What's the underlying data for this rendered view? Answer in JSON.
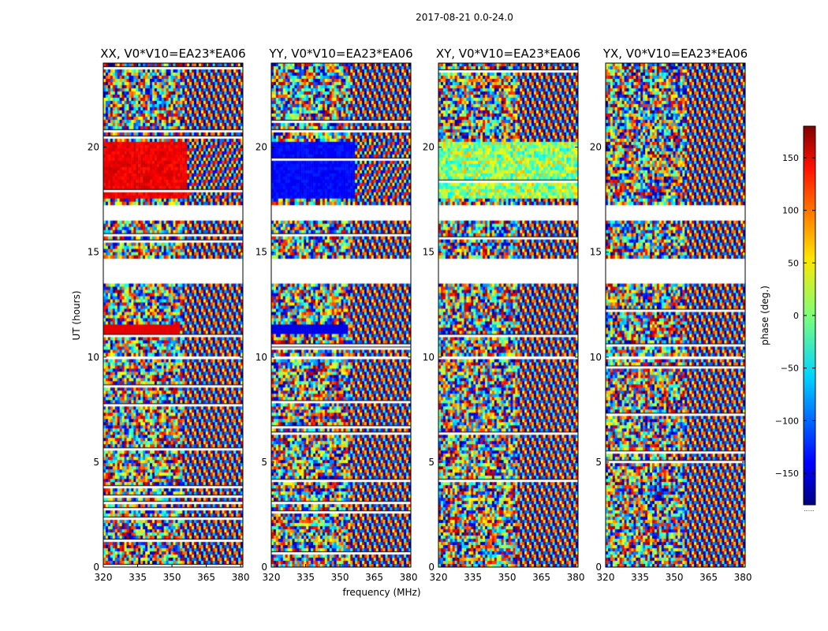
{
  "chart_data": {
    "type": "heatmap",
    "suptitle": "2017-08-21 0.0-24.0",
    "xlabel": "frequency (MHz)",
    "ylabel": "UT (hours)",
    "xlim": [
      320,
      381
    ],
    "ylim": [
      0,
      24
    ],
    "xticks": [
      320,
      335,
      350,
      365,
      380
    ],
    "yticks": [
      0,
      5,
      10,
      15,
      20
    ],
    "panels": [
      {
        "title": "XX, V0*V10=EA23*EA06",
        "character": "red phase block 17.5-20.3 h, red band near 11.3 h, wrapping fringes at higher frequency"
      },
      {
        "title": "YY, V0*V10=EA23*EA06",
        "character": "blue phase block 17.5-20.3 h, blue band near 11.3 h, wrapping fringes at higher frequency"
      },
      {
        "title": "XY, V0*V10=EA23*EA06",
        "character": "noisy phase, green/cyan mix 17.5-20.3 h"
      },
      {
        "title": "YX, V0*V10=EA23*EA06",
        "character": "noisy phase, red/blue speckle 17.5-20.3 h"
      }
    ],
    "colorbar": {
      "label": "phase (deg.)",
      "range": [
        -180,
        180
      ],
      "ticks": [
        150,
        100,
        50,
        0,
        -50,
        -100,
        -150
      ],
      "tick_labels": [
        "150",
        "100",
        "50",
        "0",
        "−50",
        "−100",
        "−150"
      ],
      "colormap": "jet",
      "below_note": "......"
    },
    "flagged_hours": [
      [
        16.0,
        16.4
      ],
      [
        14.6,
        13.3
      ],
      [
        10.2,
        10.0
      ]
    ]
  },
  "labels": {
    "xlabel_text": "frequency (MHz)",
    "ylabel_text": "UT (hours)",
    "cb_label_text": "phase (deg.)"
  }
}
